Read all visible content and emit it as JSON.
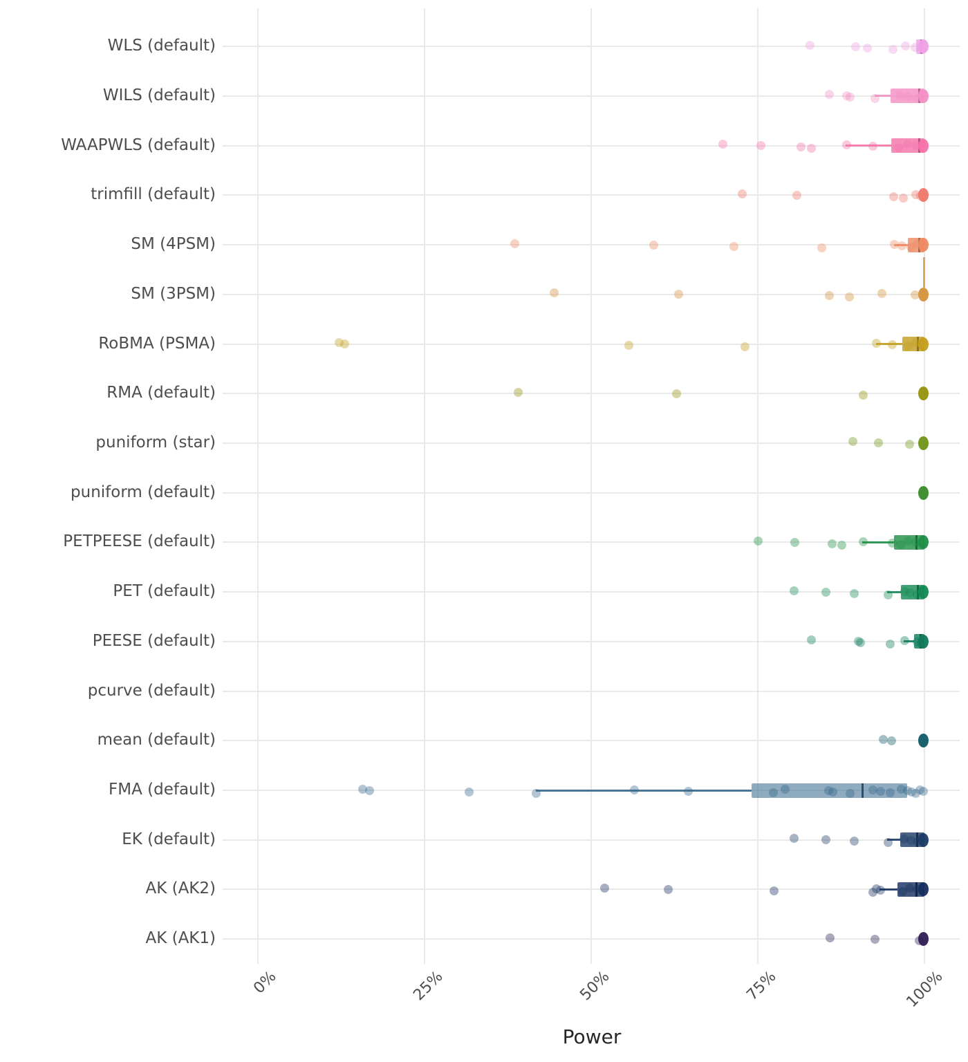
{
  "chart_data": {
    "type": "boxplot",
    "subtype": "horizontal-boxplot-with-jittered-points",
    "title": "",
    "xlabel": "Power",
    "ylabel": "",
    "xlim": [
      0,
      100
    ],
    "grid": true,
    "legend": false,
    "x_ticks": [
      {
        "value": 0,
        "label": "0%"
      },
      {
        "value": 25,
        "label": "25%"
      },
      {
        "value": 50,
        "label": "50%"
      },
      {
        "value": 75,
        "label": "75%"
      },
      {
        "value": 100,
        "label": "100%"
      }
    ],
    "rows": [
      {
        "label": "WLS (default)",
        "color": "#f0a0e6",
        "points": [
          82.7,
          89.6,
          91.3,
          95.2,
          97.0,
          98.5,
          99.4
        ],
        "box": {
          "q1": 98.8,
          "median": 99.5,
          "q3": 100,
          "whisker_low": null
        },
        "cluster_at_100": true,
        "tail_up": false
      },
      {
        "label": "WILS (default)",
        "color": "#f48fc4",
        "points": [
          85.6,
          88.2,
          88.7,
          92.5,
          96.2,
          97.5,
          98.8,
          99.5
        ],
        "box": {
          "q1": 94.9,
          "median": 99.2,
          "q3": 100,
          "whisker_low": 92.5
        },
        "cluster_at_100": true,
        "tail_up": false
      },
      {
        "label": "WAAPWLS (default)",
        "color": "#f573aa",
        "points": [
          69.7,
          75.4,
          81.4,
          82.9,
          88.2,
          92.2,
          96.0,
          97.4,
          98.7
        ],
        "box": {
          "q1": 95.0,
          "median": 99.2,
          "q3": 100,
          "whisker_low": 88.2
        },
        "cluster_at_100": true,
        "tail_up": false
      },
      {
        "label": "trimfill (default)",
        "color": "#f0776b",
        "points": [
          72.6,
          80.8,
          95.3,
          96.7,
          98.6,
          99.3
        ],
        "box": null,
        "cluster_at_100": true,
        "tail_up": false
      },
      {
        "label": "SM (4PSM)",
        "color": "#ee8a62",
        "points": [
          38.4,
          59.3,
          71.3,
          84.5,
          95.4,
          96.5,
          97.9,
          98.9,
          99.6
        ],
        "box": {
          "q1": 97.5,
          "median": 99.2,
          "q3": 100,
          "whisker_low": 95.4
        },
        "cluster_at_100": true,
        "tail_up": false
      },
      {
        "label": "SM (3PSM)",
        "color": "#d6913b",
        "points": [
          44.3,
          63.0,
          85.6,
          88.6,
          93.5,
          98.5
        ],
        "box": null,
        "cluster_at_100": true,
        "tail_up": true
      },
      {
        "label": "RoBMA (PSMA)",
        "color": "#c49e1f",
        "points": [
          12.1,
          12.9,
          55.5,
          73.0,
          92.7,
          95.1,
          97.5,
          98.6,
          99.4
        ],
        "box": {
          "q1": 96.7,
          "median": 99.0,
          "q3": 100,
          "whisker_low": 92.7
        },
        "cluster_at_100": true,
        "tail_up": false
      },
      {
        "label": "RMA (default)",
        "color": "#95920c",
        "points": [
          39.0,
          62.7,
          90.7
        ],
        "box": null,
        "cluster_at_100": true,
        "tail_up": false
      },
      {
        "label": "puniform (star)",
        "color": "#6f9415",
        "points": [
          89.2,
          93.0,
          97.7
        ],
        "box": null,
        "cluster_at_100": true,
        "tail_up": false
      },
      {
        "label": "puniform (default)",
        "color": "#3a8b2a",
        "points": [],
        "box": null,
        "cluster_at_100": true,
        "tail_up": false
      },
      {
        "label": "PETPEESE (default)",
        "color": "#1f8f47",
        "points": [
          74.9,
          80.4,
          86.0,
          87.5,
          90.7,
          95.1,
          96.3,
          97.5,
          98.6,
          99.4
        ],
        "box": {
          "q1": 95.4,
          "median": 98.8,
          "q3": 100,
          "whisker_low": 90.7
        },
        "cluster_at_100": true,
        "tail_up": false
      },
      {
        "label": "PET (default)",
        "color": "#148a55",
        "points": [
          80.3,
          85.1,
          89.4,
          94.4,
          96.9,
          97.8,
          98.8,
          99.5
        ],
        "box": {
          "q1": 96.5,
          "median": 99.0,
          "q3": 100,
          "whisker_low": 94.4
        },
        "cluster_at_100": true,
        "tail_up": false
      },
      {
        "label": "PEESE (default)",
        "color": "#0f7a5c",
        "points": [
          82.9,
          90.0,
          90.3,
          94.8,
          96.9,
          98.8,
          99.4
        ],
        "box": {
          "q1": 98.4,
          "median": 99.4,
          "q3": 100,
          "whisker_low": 96.9
        },
        "cluster_at_100": true,
        "tail_up": false
      },
      {
        "label": "pcurve (default)",
        "color": "#0c6a62",
        "points": [],
        "box": null,
        "cluster_at_100": false,
        "tail_up": false
      },
      {
        "label": "mean (default)",
        "color": "#0d5a66",
        "points": [
          93.7,
          95.0
        ],
        "box": null,
        "cluster_at_100": true,
        "tail_up": false
      },
      {
        "label": "FMA (default)",
        "color": "#35688c",
        "points": [
          15.6,
          16.7,
          31.6,
          41.7,
          56.4,
          64.5,
          77.2,
          79.0,
          85.5,
          86.1,
          88.7,
          92.2,
          93.3,
          94.8,
          96.4,
          97.4,
          98.0,
          98.6,
          99.2,
          99.7
        ],
        "box": {
          "q1": 74.1,
          "median": 90.7,
          "q3": 97.4,
          "whisker_low": 41.7
        },
        "box_alpha": 0.55,
        "cluster_at_100": false,
        "tail_up": false
      },
      {
        "label": "EK (default)",
        "color": "#1c3c66",
        "points": [
          80.3,
          85.1,
          89.4,
          94.4,
          96.8,
          97.9,
          98.9,
          99.5
        ],
        "box": {
          "q1": 96.4,
          "median": 98.9,
          "q3": 100,
          "whisker_low": 94.4
        },
        "cluster_at_100": true,
        "tail_up": false
      },
      {
        "label": "AK (AK2)",
        "color": "#152f5e",
        "points": [
          51.9,
          61.5,
          77.3,
          92.2,
          92.7,
          93.3,
          96.6,
          97.7,
          98.8
        ],
        "box": {
          "q1": 96.0,
          "median": 98.8,
          "q3": 100,
          "whisker_low": 93.3
        },
        "cluster_at_100": true,
        "tail_up": false
      },
      {
        "label": "AK (AK1)",
        "color": "#2d1c55",
        "points": [
          85.7,
          92.5,
          99.1
        ],
        "box": null,
        "cluster_at_100": true,
        "tail_up": false
      }
    ]
  }
}
